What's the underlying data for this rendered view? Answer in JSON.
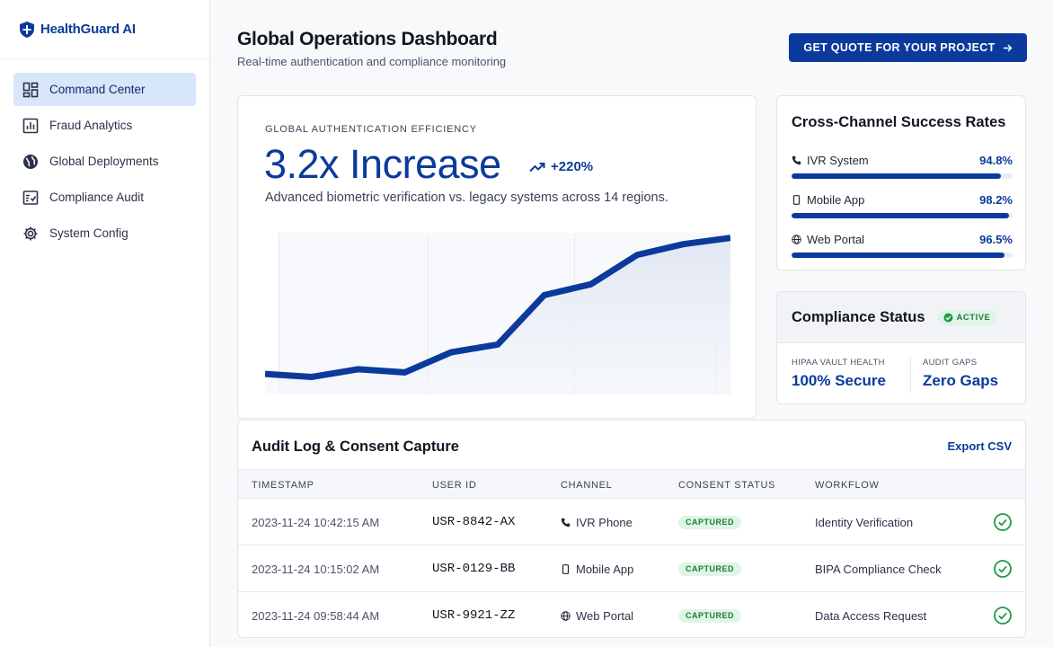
{
  "brand": {
    "name": "HealthGuard AI",
    "icon": "shield-icon"
  },
  "sidebar": {
    "items": [
      {
        "label": "Command Center",
        "icon": "dashboard-grid-icon",
        "active": true
      },
      {
        "label": "Fraud Analytics",
        "icon": "bar-chart-icon",
        "active": false
      },
      {
        "label": "Global Deployments",
        "icon": "globe-icon",
        "active": false
      },
      {
        "label": "Compliance Audit",
        "icon": "checklist-icon",
        "active": false
      },
      {
        "label": "System Config",
        "icon": "gear-icon",
        "active": false
      }
    ]
  },
  "header": {
    "title": "Global Operations Dashboard",
    "subtitle": "Real-time authentication and compliance monitoring",
    "cta_label": "GET QUOTE FOR YOUR PROJECT",
    "cta_icon": "arrow-right-icon"
  },
  "hero": {
    "eyebrow": "GLOBAL AUTHENTICATION EFFICIENCY",
    "metric": "3.2x Increase",
    "delta": "+220%",
    "delta_icon": "trending-up-icon",
    "description": "Advanced biometric verification vs. legacy systems across 14 regions."
  },
  "chart_data": {
    "type": "area",
    "x": [
      0,
      1,
      2,
      3,
      4,
      5,
      6,
      7,
      8,
      9,
      10
    ],
    "values": [
      0.11,
      0.09,
      0.14,
      0.12,
      0.25,
      0.3,
      0.62,
      0.69,
      0.88,
      0.95,
      0.99
    ],
    "ylim": [
      0,
      1
    ],
    "grid": "vertical",
    "color": "#0b3a9c"
  },
  "rates": {
    "title": "Cross-Channel Success Rates",
    "items": [
      {
        "label": "IVR System",
        "value": "94.8%",
        "fraction": 0.948,
        "icon": "phone-icon"
      },
      {
        "label": "Mobile App",
        "value": "98.2%",
        "fraction": 0.982,
        "icon": "mobile-icon"
      },
      {
        "label": "Web Portal",
        "value": "96.5%",
        "fraction": 0.965,
        "icon": "globe-icon"
      }
    ]
  },
  "compliance": {
    "title": "Compliance Status",
    "badge": "ACTIVE",
    "badge_icon": "check-badge-icon",
    "vault_label": "HIPAA VAULT HEALTH",
    "vault_value": "100% Secure",
    "gaps_label": "AUDIT GAPS",
    "gaps_value": "Zero Gaps"
  },
  "audit": {
    "title": "Audit Log & Consent Capture",
    "export_label": "Export CSV",
    "columns": [
      "TIMESTAMP",
      "USER ID",
      "CHANNEL",
      "CONSENT STATUS",
      "WORKFLOW"
    ],
    "rows": [
      {
        "timestamp": "2023-11-24 10:42:15 AM",
        "user_id": "USR-8842-AX",
        "channel": "IVR Phone",
        "channel_icon": "phone-icon",
        "status": "CAPTURED",
        "workflow": "Identity Verification"
      },
      {
        "timestamp": "2023-11-24 10:15:02 AM",
        "user_id": "USR-0129-BB",
        "channel": "Mobile App",
        "channel_icon": "mobile-icon",
        "status": "CAPTURED",
        "workflow": "BIPA Compliance Check"
      },
      {
        "timestamp": "2023-11-24 09:58:44 AM",
        "user_id": "USR-9921-ZZ",
        "channel": "Web Portal",
        "channel_icon": "globe-icon",
        "status": "CAPTURED",
        "workflow": "Data Access Request"
      }
    ]
  },
  "colors": {
    "primary": "#0b3a9c",
    "success": "#1f9a4a",
    "active_nav": "#d7e6fb"
  }
}
